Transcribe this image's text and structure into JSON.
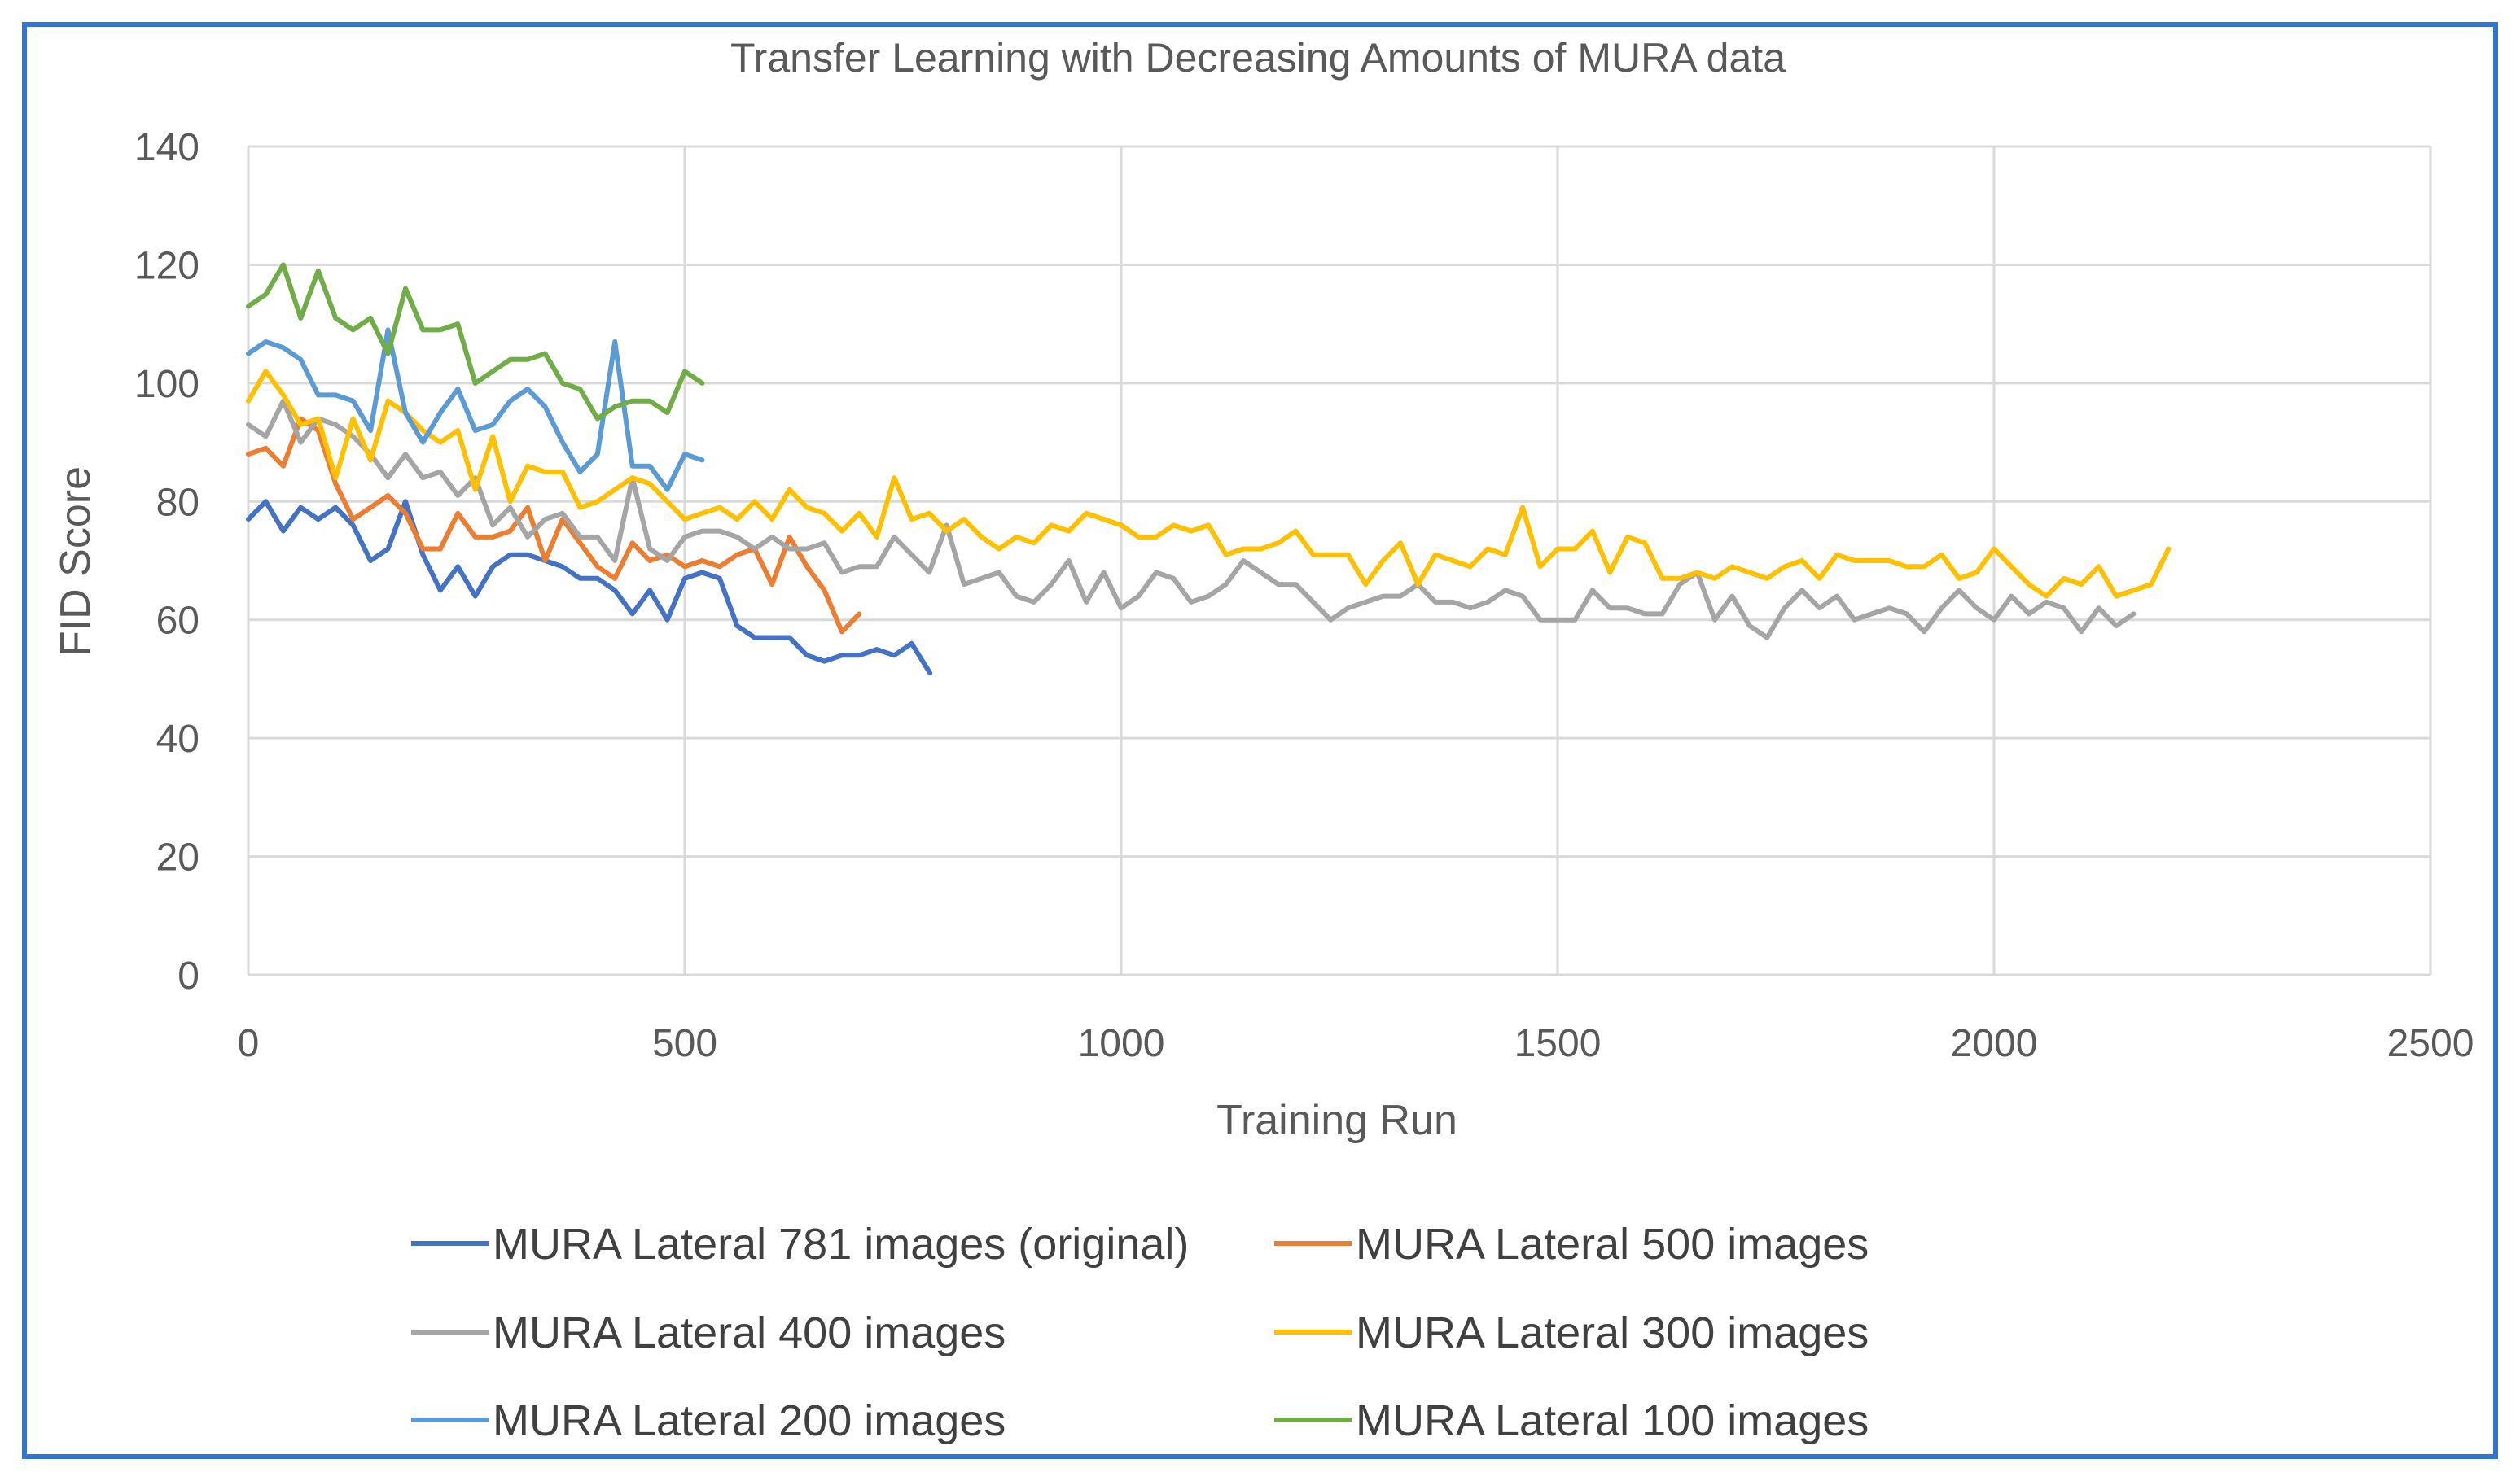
{
  "chart_data": {
    "type": "line",
    "title": "Transfer Learning with Decreasing Amounts of MURA data",
    "xlabel": "Training Run",
    "ylabel": "FID Score",
    "xlim": [
      0,
      2500
    ],
    "ylim": [
      0,
      140
    ],
    "x_ticks": [
      "0",
      "500",
      "1000",
      "1500",
      "2000",
      "2500"
    ],
    "y_ticks": [
      "0",
      "20",
      "40",
      "60",
      "80",
      "100",
      "120",
      "140"
    ],
    "grid": true,
    "legend_position": "bottom",
    "series": [
      {
        "name": "MURA Lateral 781 images (original)",
        "color": "#4472C4",
        "x": [
          0,
          20,
          40,
          60,
          80,
          100,
          120,
          140,
          160,
          180,
          200,
          220,
          240,
          260,
          280,
          300,
          320,
          340,
          360,
          380,
          400,
          420,
          440,
          460,
          480,
          500,
          520,
          540,
          560,
          580,
          600,
          620,
          640,
          660,
          680,
          700,
          720,
          740,
          760,
          781
        ],
        "y": [
          77,
          80,
          75,
          79,
          77,
          79,
          76,
          70,
          72,
          80,
          71,
          65,
          69,
          64,
          69,
          71,
          71,
          70,
          69,
          67,
          67,
          65,
          61,
          65,
          60,
          67,
          68,
          67,
          59,
          57,
          57,
          57,
          54,
          53,
          54,
          54,
          55,
          54,
          56,
          51
        ]
      },
      {
        "name": "MURA Lateral 500 images",
        "color": "#ED7D31",
        "x": [
          0,
          20,
          40,
          60,
          80,
          100,
          120,
          140,
          160,
          180,
          200,
          220,
          240,
          260,
          280,
          300,
          320,
          340,
          360,
          380,
          400,
          420,
          440,
          460,
          480,
          500,
          520,
          540,
          560,
          580,
          600,
          620,
          640,
          660,
          680,
          700
        ],
        "y": [
          88,
          89,
          86,
          94,
          92,
          83,
          77,
          79,
          81,
          78,
          72,
          72,
          78,
          74,
          74,
          75,
          79,
          70,
          77,
          73,
          69,
          67,
          73,
          70,
          71,
          69,
          70,
          69,
          71,
          72,
          66,
          74,
          69,
          65,
          58,
          61
        ]
      },
      {
        "name": "MURA Lateral 400 images",
        "color": "#A5A5A5",
        "x": [
          0,
          20,
          40,
          60,
          80,
          100,
          120,
          140,
          160,
          180,
          200,
          220,
          240,
          260,
          280,
          300,
          320,
          340,
          360,
          380,
          400,
          420,
          440,
          460,
          480,
          500,
          520,
          540,
          560,
          580,
          600,
          620,
          640,
          660,
          680,
          700,
          720,
          740,
          760,
          780,
          800,
          820,
          840,
          860,
          880,
          900,
          920,
          940,
          960,
          980,
          1000,
          1020,
          1040,
          1060,
          1080,
          1100,
          1120,
          1140,
          1160,
          1180,
          1200,
          1220,
          1240,
          1260,
          1280,
          1300,
          1320,
          1340,
          1360,
          1380,
          1400,
          1420,
          1440,
          1460,
          1480,
          1500,
          1520,
          1540,
          1560,
          1580,
          1600,
          1620,
          1640,
          1660,
          1680,
          1700,
          1720,
          1740,
          1760,
          1780,
          1800,
          1820,
          1840,
          1860,
          1880,
          1900,
          1920,
          1940,
          1960,
          1980,
          2000,
          2020,
          2040,
          2060,
          2080,
          2100,
          2120,
          2140,
          2160
        ],
        "y": [
          93,
          91,
          97,
          90,
          94,
          93,
          91,
          88,
          84,
          88,
          84,
          85,
          81,
          84,
          76,
          79,
          74,
          77,
          78,
          74,
          74,
          70,
          84,
          72,
          70,
          74,
          75,
          75,
          74,
          72,
          74,
          72,
          72,
          73,
          68,
          69,
          69,
          74,
          71,
          68,
          76,
          66,
          67,
          68,
          64,
          63,
          66,
          70,
          63,
          68,
          62,
          64,
          68,
          67,
          63,
          64,
          66,
          70,
          68,
          66,
          66,
          63,
          60,
          62,
          63,
          64,
          64,
          66,
          63,
          63,
          62,
          63,
          65,
          64,
          60,
          60,
          60,
          65,
          62,
          62,
          61,
          61,
          66,
          68,
          60,
          64,
          59,
          57,
          62,
          65,
          62,
          64,
          60,
          61,
          62,
          61,
          58,
          62,
          65,
          62,
          60,
          64,
          61,
          63,
          62,
          58,
          62,
          59,
          61
        ]
      },
      {
        "name": "MURA Lateral 300 images",
        "color": "#FFC000",
        "x": [
          0,
          20,
          40,
          60,
          80,
          100,
          120,
          140,
          160,
          180,
          200,
          220,
          240,
          260,
          280,
          300,
          320,
          340,
          360,
          380,
          400,
          420,
          440,
          460,
          480,
          500,
          520,
          540,
          560,
          580,
          600,
          620,
          640,
          660,
          680,
          700,
          720,
          740,
          760,
          780,
          800,
          820,
          840,
          860,
          880,
          900,
          920,
          940,
          960,
          980,
          1000,
          1020,
          1040,
          1060,
          1080,
          1100,
          1120,
          1140,
          1160,
          1180,
          1200,
          1220,
          1240,
          1260,
          1280,
          1300,
          1320,
          1340,
          1360,
          1380,
          1400,
          1420,
          1440,
          1460,
          1480,
          1500,
          1520,
          1540,
          1560,
          1580,
          1600,
          1620,
          1640,
          1660,
          1680,
          1700,
          1720,
          1740,
          1760,
          1780,
          1800,
          1820,
          1840,
          1860,
          1880,
          1900,
          1920,
          1940,
          1960,
          1980,
          2000,
          2020,
          2040,
          2060,
          2080,
          2100,
          2120,
          2140,
          2160,
          2180,
          2200
        ],
        "y": [
          97,
          102,
          98,
          93,
          94,
          84,
          94,
          87,
          97,
          95,
          92,
          90,
          92,
          82,
          91,
          80,
          86,
          85,
          85,
          79,
          80,
          82,
          84,
          83,
          80,
          77,
          78,
          79,
          77,
          80,
          77,
          82,
          79,
          78,
          75,
          78,
          74,
          84,
          77,
          78,
          75,
          77,
          74,
          72,
          74,
          73,
          76,
          75,
          78,
          77,
          76,
          74,
          74,
          76,
          75,
          76,
          71,
          72,
          72,
          73,
          75,
          71,
          71,
          71,
          66,
          70,
          73,
          66,
          71,
          70,
          69,
          72,
          71,
          79,
          69,
          72,
          72,
          75,
          68,
          74,
          73,
          67,
          67,
          68,
          67,
          69,
          68,
          67,
          69,
          70,
          67,
          71,
          70,
          70,
          70,
          69,
          69,
          71,
          67,
          68,
          72,
          69,
          66,
          64,
          67,
          66,
          69,
          64,
          65,
          66,
          72
        ]
      },
      {
        "name": "MURA Lateral 200 images",
        "color": "#5B9BD5",
        "x": [
          0,
          20,
          40,
          60,
          80,
          100,
          120,
          140,
          160,
          180,
          200,
          220,
          240,
          260,
          280,
          300,
          320,
          340,
          360,
          380,
          400,
          420,
          440,
          460,
          480,
          500,
          520
        ],
        "y": [
          105,
          107,
          106,
          104,
          98,
          98,
          97,
          92,
          109,
          95,
          90,
          95,
          99,
          92,
          93,
          97,
          99,
          96,
          90,
          85,
          88,
          107,
          86,
          86,
          82,
          88,
          87
        ]
      },
      {
        "name": "MURA Lateral 100 images",
        "color": "#70AD47",
        "x": [
          0,
          20,
          40,
          60,
          80,
          100,
          120,
          140,
          160,
          180,
          200,
          220,
          240,
          260,
          280,
          300,
          320,
          340,
          360,
          380,
          400,
          420,
          440,
          460,
          480,
          500,
          520
        ],
        "y": [
          113,
          115,
          120,
          111,
          119,
          111,
          109,
          111,
          105,
          116,
          109,
          109,
          110,
          100,
          102,
          104,
          104,
          105,
          100,
          99,
          94,
          96,
          97,
          97,
          95,
          102,
          100
        ]
      }
    ]
  }
}
